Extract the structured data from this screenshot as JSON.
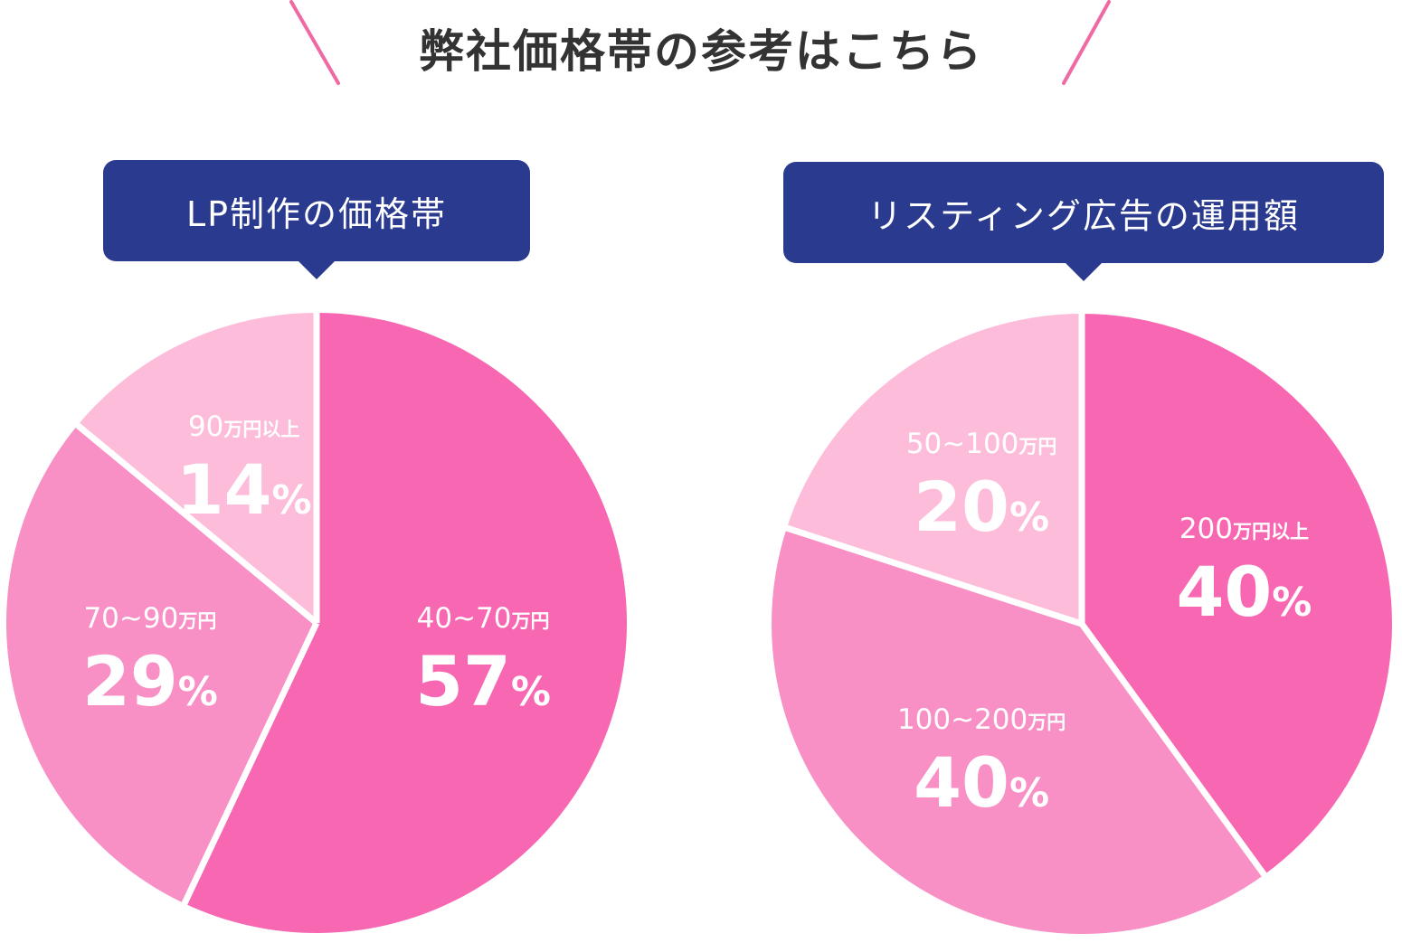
{
  "headline": "弊社価格帯の参考はこちら",
  "colors": {
    "accent": "#ef6aa3",
    "bubble": "#2a3a8f",
    "text_dark": "#333333",
    "slice_dark": "#f868b2",
    "slice_mid": "#f890c5",
    "slice_light": "#fdbdda",
    "separator": "#ffffff"
  },
  "chart_data": [
    {
      "type": "pie",
      "title": "LP制作の価格帯",
      "slices": [
        {
          "category": "40~70",
          "unit": "万円",
          "value": 57,
          "pct_unit": "%",
          "color": "#f868b2"
        },
        {
          "category": "70~90",
          "unit": "万円",
          "value": 29,
          "pct_unit": "%",
          "color": "#f890c5"
        },
        {
          "category": "90",
          "unit": "万円以上",
          "value": 14,
          "pct_unit": "%",
          "color": "#fdbdda"
        }
      ]
    },
    {
      "type": "pie",
      "title": "リスティング広告の運用額",
      "slices": [
        {
          "category": "200",
          "unit": "万円以上",
          "value": 40,
          "pct_unit": "%",
          "color": "#f868b2"
        },
        {
          "category": "100~200",
          "unit": "万円",
          "value": 40,
          "pct_unit": "%",
          "color": "#f890c5"
        },
        {
          "category": "50~100",
          "unit": "万円",
          "value": 20,
          "pct_unit": "%",
          "color": "#fdbdda"
        }
      ]
    }
  ]
}
